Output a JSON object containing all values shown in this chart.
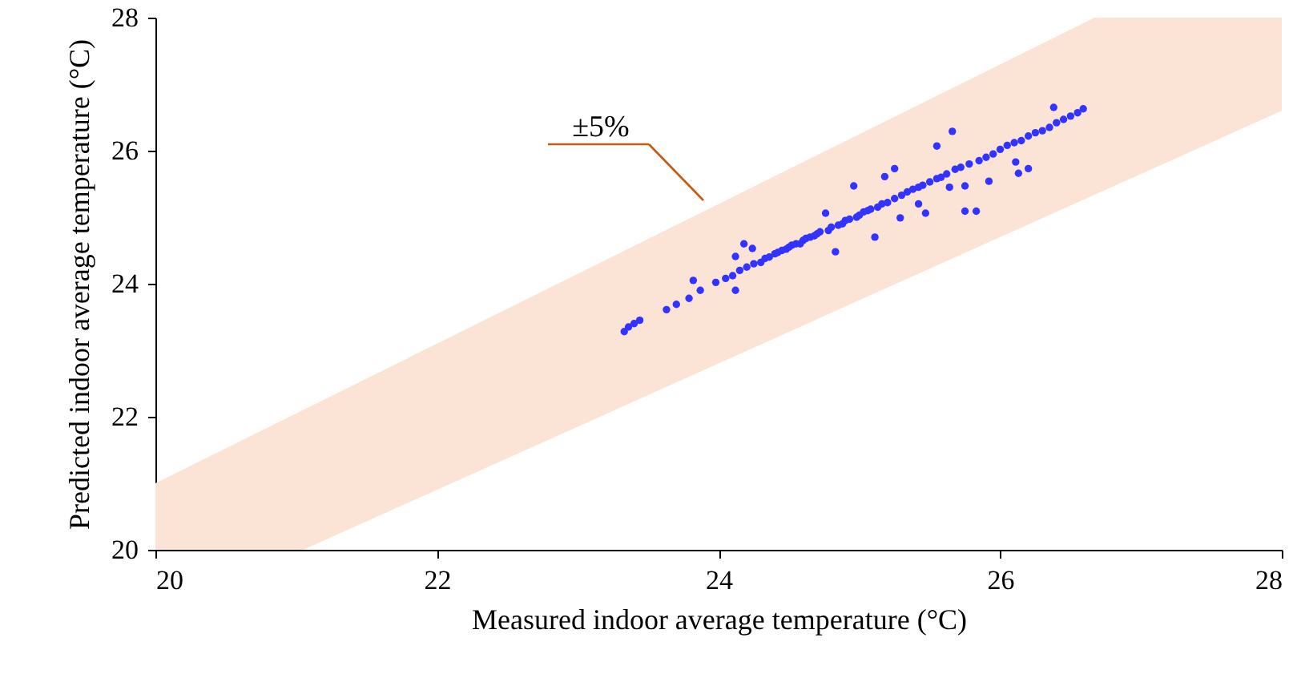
{
  "chart_data": {
    "type": "scatter",
    "xlabel": "Measured indoor average temperature (°C)",
    "ylabel": "Predicted indoor average temperature (°C)",
    "xlim": [
      20,
      28
    ],
    "ylim": [
      20,
      28
    ],
    "xticks": [
      20,
      22,
      24,
      26,
      28
    ],
    "yticks": [
      20,
      22,
      24,
      26,
      28
    ],
    "grid": false,
    "annotations": [
      "±5%"
    ],
    "series": [
      {
        "type": "scatter",
        "color": "#3333ff",
        "marker": "circle",
        "x": [
          23.33,
          23.36,
          23.4,
          23.44,
          23.63,
          23.7,
          23.79,
          23.82,
          23.87,
          23.98,
          24.05,
          24.1,
          24.12,
          24.12,
          24.15,
          24.18,
          24.2,
          24.24,
          24.25,
          24.3,
          24.33,
          24.36,
          24.4,
          24.42,
          24.45,
          24.48,
          24.5,
          24.52,
          24.55,
          24.58,
          24.6,
          24.62,
          24.65,
          24.68,
          24.7,
          24.72,
          24.76,
          24.78,
          24.8,
          24.83,
          24.85,
          24.88,
          24.9,
          24.93,
          24.96,
          24.98,
          25.0,
          25.03,
          25.06,
          25.08,
          25.11,
          25.13,
          25.16,
          25.18,
          25.2,
          25.25,
          25.25,
          25.29,
          25.3,
          25.34,
          25.38,
          25.42,
          25.42,
          25.45,
          25.47,
          25.5,
          25.55,
          25.55,
          25.58,
          25.62,
          25.64,
          25.66,
          25.68,
          25.72,
          25.75,
          25.75,
          25.78,
          25.83,
          25.85,
          25.9,
          25.92,
          25.95,
          26.0,
          26.05,
          26.1,
          26.11,
          26.13,
          26.15,
          26.2,
          26.2,
          26.25,
          26.3,
          26.35,
          26.38,
          26.4,
          26.45,
          26.5,
          26.55,
          26.59
        ],
        "values": [
          23.28,
          23.35,
          23.4,
          23.45,
          23.61,
          23.69,
          23.78,
          24.05,
          23.9,
          24.02,
          24.08,
          24.12,
          24.41,
          23.9,
          24.2,
          24.6,
          24.25,
          24.53,
          24.3,
          24.32,
          24.38,
          24.4,
          24.45,
          24.47,
          24.5,
          24.52,
          24.55,
          24.58,
          24.6,
          24.6,
          24.65,
          24.68,
          24.7,
          24.72,
          24.75,
          24.78,
          25.06,
          24.8,
          24.85,
          24.48,
          24.88,
          24.9,
          24.95,
          24.97,
          25.47,
          25.0,
          25.03,
          25.08,
          25.1,
          25.12,
          24.7,
          25.15,
          25.2,
          25.61,
          25.22,
          25.73,
          25.28,
          24.99,
          25.33,
          25.38,
          25.42,
          25.2,
          25.45,
          25.48,
          25.06,
          25.53,
          26.07,
          25.58,
          25.6,
          25.65,
          25.45,
          26.29,
          25.72,
          25.75,
          25.47,
          25.09,
          25.8,
          25.09,
          25.85,
          25.9,
          25.54,
          25.95,
          26.02,
          26.08,
          26.12,
          25.83,
          25.66,
          26.15,
          25.73,
          26.22,
          26.27,
          26.3,
          26.35,
          26.65,
          26.42,
          26.47,
          26.52,
          26.57,
          26.63
        ]
      },
      {
        "type": "area",
        "color": "#fbe4d5",
        "x": [
          20,
          26.67,
          28
        ],
        "values": [
          21,
          28,
          28
        ]
      },
      {
        "type": "area",
        "color": "#ffffff",
        "x": [
          20,
          21.05,
          28
        ],
        "values": [
          20,
          20,
          26.6
        ]
      }
    ]
  }
}
